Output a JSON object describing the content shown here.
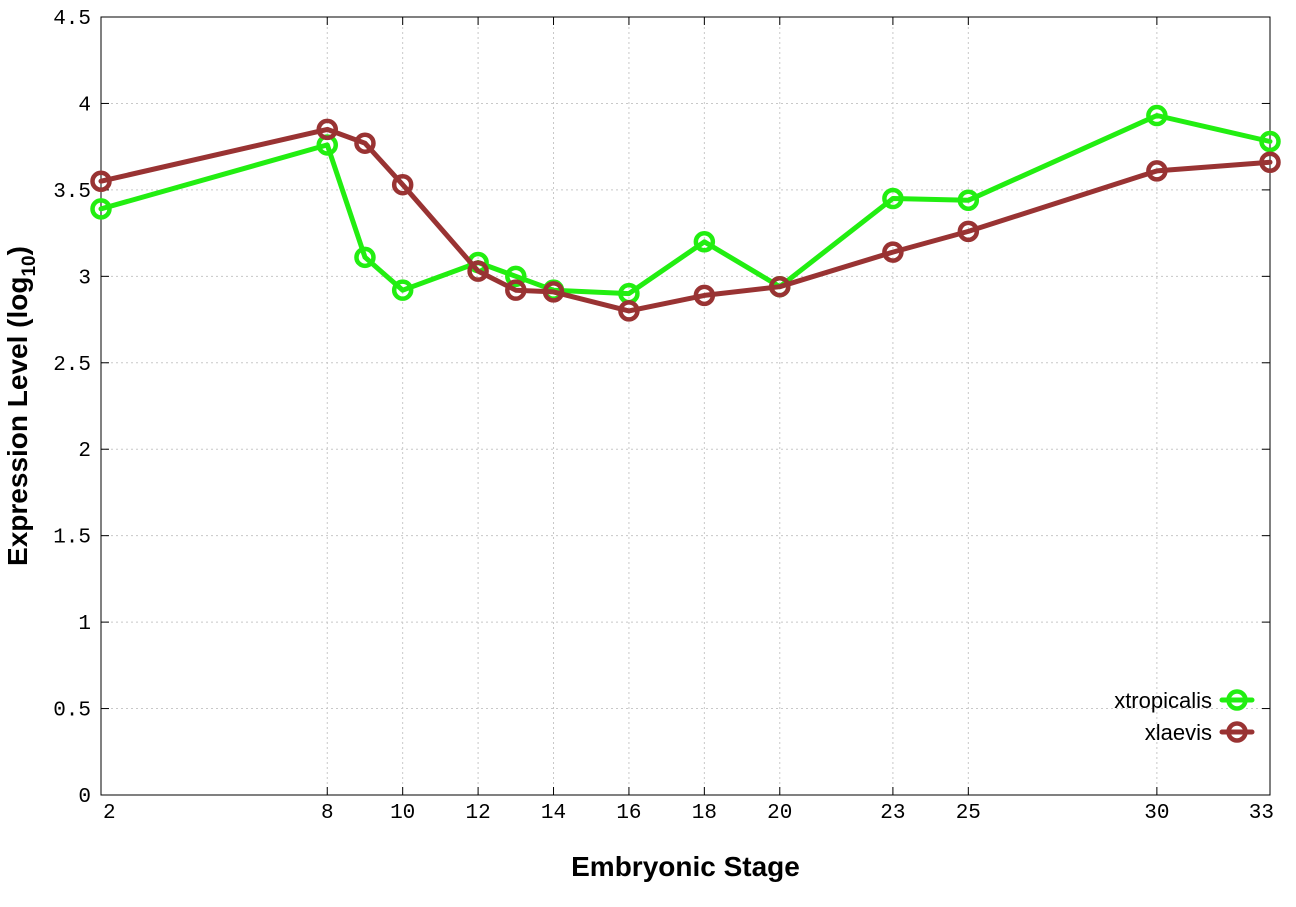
{
  "chart_data": {
    "type": "line",
    "title": "",
    "xlabel": "Embryonic Stage",
    "ylabel_main": "Expression Level (log",
    "ylabel_sub": "10",
    "ylabel_close": ")",
    "xlim": [
      2,
      33
    ],
    "ylim": [
      0,
      4.5
    ],
    "x": [
      2,
      8,
      9,
      10,
      12,
      13,
      14,
      16,
      18,
      20,
      23,
      25,
      30,
      33
    ],
    "xtick_values": [
      2,
      8,
      10,
      12,
      14,
      16,
      18,
      20,
      23,
      25,
      30,
      33
    ],
    "xtick_labels": [
      "2",
      "8",
      "10",
      "12",
      "14",
      "16",
      "18",
      "20",
      "23",
      "25",
      "30",
      "33"
    ],
    "ytick_values": [
      0,
      0.5,
      1,
      1.5,
      2,
      2.5,
      3,
      3.5,
      4,
      4.5
    ],
    "ytick_labels": [
      "0",
      "0.5",
      "1",
      "1.5",
      "2",
      "2.5",
      "3",
      "3.5",
      "4",
      "4.5"
    ],
    "grid": true,
    "legend_position": "bottom-right",
    "series": [
      {
        "name": "xtropicalis",
        "color": "#22ee11",
        "values": [
          3.39,
          3.76,
          3.11,
          2.92,
          3.08,
          3.0,
          2.92,
          2.9,
          3.2,
          2.94,
          3.45,
          3.44,
          3.93,
          3.78
        ]
      },
      {
        "name": "xlaevis",
        "color": "#993333",
        "values": [
          3.55,
          3.85,
          3.77,
          3.53,
          3.03,
          2.92,
          2.91,
          2.8,
          2.89,
          2.94,
          3.14,
          3.26,
          3.61,
          3.66
        ]
      }
    ]
  }
}
